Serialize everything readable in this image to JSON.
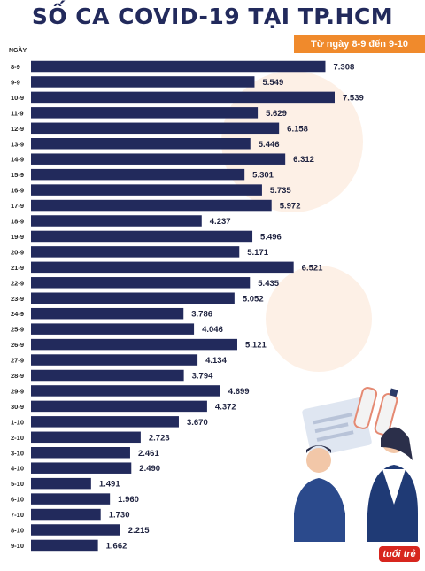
{
  "header": {
    "title": "SỐ CA COVID-19 TẠI TP.HCM",
    "subtitle": "Từ ngày 8-9 đến 9-10",
    "axis_label": "NGÀY"
  },
  "logo_text": "tuổi trẻ",
  "colors": {
    "title": "#222a5c",
    "bar": "#222a5c",
    "accent": "#f08a2c"
  },
  "chart_data": {
    "type": "bar",
    "orientation": "horizontal",
    "title": "SỐ CA COVID-19 TẠI TP.HCM",
    "subtitle": "Từ ngày 8-9 đến 9-10",
    "xlabel": "NGÀY",
    "ylabel": "",
    "categories": [
      "8-9",
      "9-9",
      "10-9",
      "11-9",
      "12-9",
      "13-9",
      "14-9",
      "15-9",
      "16-9",
      "17-9",
      "18-9",
      "19-9",
      "20-9",
      "21-9",
      "22-9",
      "23-9",
      "24-9",
      "25-9",
      "26-9",
      "27-9",
      "28-9",
      "29-9",
      "30-9",
      "1-10",
      "2-10",
      "3-10",
      "4-10",
      "5-10",
      "6-10",
      "7-10",
      "8-10",
      "9-10"
    ],
    "values": [
      7308,
      5549,
      7539,
      5629,
      6158,
      5446,
      6312,
      5301,
      5735,
      5972,
      4237,
      5496,
      5171,
      6521,
      5435,
      5052,
      3786,
      4046,
      5121,
      4134,
      3794,
      4699,
      4372,
      3670,
      2723,
      2461,
      2490,
      1491,
      1960,
      1730,
      2215,
      1662
    ],
    "value_labels": [
      "7.308",
      "5.549",
      "7.539",
      "5.629",
      "6.158",
      "5.446",
      "6.312",
      "5.301",
      "5.735",
      "5.972",
      "4.237",
      "5.496",
      "5.171",
      "6.521",
      "5.435",
      "5.052",
      "3.786",
      "4.046",
      "5.121",
      "4.134",
      "3.794",
      "4.699",
      "4.372",
      "3.670",
      "2.723",
      "2.461",
      "2.490",
      "1.491",
      "1.960",
      "1.730",
      "2.215",
      "1.662"
    ],
    "grid": false,
    "legend": "none"
  }
}
